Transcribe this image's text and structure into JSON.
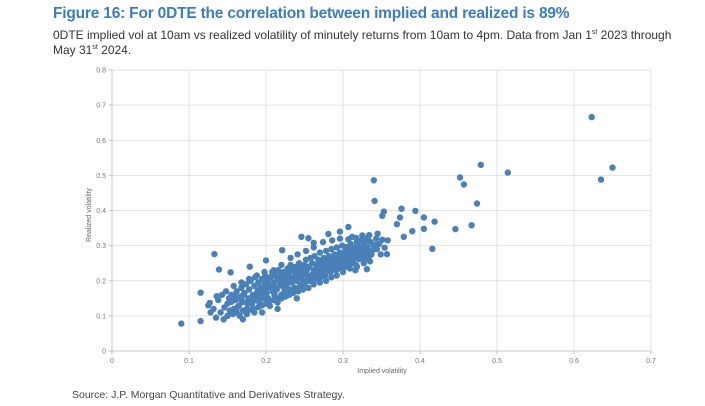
{
  "figure": {
    "title": "Figure 16: For 0DTE the correlation between implied and realized is 89%",
    "subtitle_part1": "0DTE implied vol at 10am vs realized volatility of minutely returns from 10am to 4pm. Data from Jan 1",
    "subtitle_sup1": "st",
    "subtitle_part2": " 2023 through May 31",
    "subtitle_sup2": "st",
    "subtitle_part3": " 2024.",
    "source": "Source: J.P. Morgan Quantitative and Derivatives Strategy."
  },
  "chart_data": {
    "type": "scatter",
    "title": "Figure 16: For 0DTE the correlation between implied and realized is 89%",
    "xlabel": "Implied volatility",
    "ylabel": "Realized volatility",
    "xlim": [
      0,
      0.7
    ],
    "ylim": [
      0,
      0.8
    ],
    "xticks": [
      "0",
      "0.1",
      "0.2",
      "0.3",
      "0.4",
      "0.5",
      "0.6",
      "0.7"
    ],
    "yticks": [
      "0",
      "0.1",
      "0.2",
      "0.3",
      "0.4",
      "0.5",
      "0.6",
      "0.7",
      "0.8"
    ],
    "grid": true,
    "color": "#4a80b8",
    "points": [
      [
        0.623,
        0.666
      ],
      [
        0.65,
        0.522
      ],
      [
        0.635,
        0.488
      ],
      [
        0.514,
        0.508
      ],
      [
        0.479,
        0.53
      ],
      [
        0.452,
        0.494
      ],
      [
        0.457,
        0.474
      ],
      [
        0.474,
        0.42
      ],
      [
        0.34,
        0.486
      ],
      [
        0.341,
        0.427
      ],
      [
        0.353,
        0.397
      ],
      [
        0.351,
        0.385
      ],
      [
        0.376,
        0.405
      ],
      [
        0.394,
        0.399
      ],
      [
        0.374,
        0.38
      ],
      [
        0.405,
        0.38
      ],
      [
        0.37,
        0.361
      ],
      [
        0.419,
        0.368
      ],
      [
        0.39,
        0.341
      ],
      [
        0.405,
        0.348
      ],
      [
        0.379,
        0.325
      ],
      [
        0.416,
        0.291
      ],
      [
        0.446,
        0.347
      ],
      [
        0.467,
        0.358
      ],
      [
        0.307,
        0.353
      ],
      [
        0.325,
        0.329
      ],
      [
        0.317,
        0.322
      ],
      [
        0.345,
        0.334
      ],
      [
        0.343,
        0.32
      ],
      [
        0.351,
        0.317
      ],
      [
        0.358,
        0.315
      ],
      [
        0.333,
        0.315
      ],
      [
        0.307,
        0.318
      ],
      [
        0.326,
        0.297
      ],
      [
        0.342,
        0.302
      ],
      [
        0.304,
        0.296
      ],
      [
        0.354,
        0.294
      ],
      [
        0.331,
        0.284
      ],
      [
        0.357,
        0.276
      ],
      [
        0.321,
        0.262
      ],
      [
        0.331,
        0.264
      ],
      [
        0.331,
        0.233
      ],
      [
        0.316,
        0.23
      ],
      [
        0.305,
        0.258
      ],
      [
        0.09,
        0.078
      ],
      [
        0.115,
        0.085
      ],
      [
        0.115,
        0.166
      ],
      [
        0.127,
        0.137
      ],
      [
        0.136,
        0.156
      ],
      [
        0.133,
        0.276
      ],
      [
        0.139,
        0.232
      ],
      [
        0.154,
        0.224
      ],
      [
        0.179,
        0.24
      ],
      [
        0.2,
        0.258
      ],
      [
        0.221,
        0.287
      ],
      [
        0.246,
        0.325
      ],
      [
        0.255,
        0.321
      ],
      [
        0.262,
        0.308
      ],
      [
        0.281,
        0.333
      ],
      [
        0.296,
        0.34
      ],
      [
        0.141,
        0.11
      ],
      [
        0.146,
        0.124
      ],
      [
        0.15,
        0.135
      ],
      [
        0.152,
        0.15
      ],
      [
        0.155,
        0.16
      ],
      [
        0.158,
        0.12
      ],
      [
        0.16,
        0.145
      ],
      [
        0.162,
        0.17
      ],
      [
        0.165,
        0.13
      ],
      [
        0.167,
        0.155
      ],
      [
        0.168,
        0.18
      ],
      [
        0.17,
        0.14
      ],
      [
        0.172,
        0.165
      ],
      [
        0.174,
        0.19
      ],
      [
        0.175,
        0.12
      ],
      [
        0.177,
        0.15
      ],
      [
        0.178,
        0.175
      ],
      [
        0.18,
        0.2
      ],
      [
        0.182,
        0.135
      ],
      [
        0.183,
        0.16
      ],
      [
        0.185,
        0.185
      ],
      [
        0.186,
        0.21
      ],
      [
        0.188,
        0.145
      ],
      [
        0.189,
        0.17
      ],
      [
        0.19,
        0.195
      ],
      [
        0.192,
        0.155
      ],
      [
        0.193,
        0.18
      ],
      [
        0.195,
        0.205
      ],
      [
        0.196,
        0.165
      ],
      [
        0.198,
        0.19
      ],
      [
        0.199,
        0.215
      ],
      [
        0.2,
        0.175
      ],
      [
        0.202,
        0.2
      ],
      [
        0.203,
        0.15
      ],
      [
        0.205,
        0.185
      ],
      [
        0.206,
        0.21
      ],
      [
        0.208,
        0.225
      ],
      [
        0.209,
        0.17
      ],
      [
        0.21,
        0.195
      ],
      [
        0.212,
        0.215
      ],
      [
        0.213,
        0.18
      ],
      [
        0.215,
        0.205
      ],
      [
        0.216,
        0.23
      ],
      [
        0.218,
        0.19
      ],
      [
        0.219,
        0.215
      ],
      [
        0.22,
        0.16
      ],
      [
        0.222,
        0.2
      ],
      [
        0.223,
        0.225
      ],
      [
        0.225,
        0.185
      ],
      [
        0.226,
        0.21
      ],
      [
        0.228,
        0.235
      ],
      [
        0.229,
        0.195
      ],
      [
        0.23,
        0.22
      ],
      [
        0.232,
        0.245
      ],
      [
        0.233,
        0.205
      ],
      [
        0.235,
        0.23
      ],
      [
        0.236,
        0.175
      ],
      [
        0.238,
        0.215
      ],
      [
        0.239,
        0.24
      ],
      [
        0.24,
        0.2
      ],
      [
        0.242,
        0.225
      ],
      [
        0.243,
        0.25
      ],
      [
        0.245,
        0.21
      ],
      [
        0.246,
        0.235
      ],
      [
        0.248,
        0.19
      ],
      [
        0.249,
        0.22
      ],
      [
        0.25,
        0.245
      ],
      [
        0.252,
        0.26
      ],
      [
        0.253,
        0.23
      ],
      [
        0.255,
        0.205
      ],
      [
        0.256,
        0.24
      ],
      [
        0.258,
        0.265
      ],
      [
        0.259,
        0.215
      ],
      [
        0.26,
        0.25
      ],
      [
        0.262,
        0.23
      ],
      [
        0.263,
        0.27
      ],
      [
        0.265,
        0.245
      ],
      [
        0.266,
        0.22
      ],
      [
        0.268,
        0.26
      ],
      [
        0.269,
        0.235
      ],
      [
        0.27,
        0.28
      ],
      [
        0.272,
        0.25
      ],
      [
        0.273,
        0.225
      ],
      [
        0.275,
        0.265
      ],
      [
        0.276,
        0.24
      ],
      [
        0.278,
        0.285
      ],
      [
        0.279,
        0.255
      ],
      [
        0.28,
        0.23
      ],
      [
        0.282,
        0.27
      ],
      [
        0.283,
        0.245
      ],
      [
        0.285,
        0.29
      ],
      [
        0.286,
        0.26
      ],
      [
        0.288,
        0.235
      ],
      [
        0.289,
        0.275
      ],
      [
        0.29,
        0.25
      ],
      [
        0.292,
        0.295
      ],
      [
        0.293,
        0.265
      ],
      [
        0.295,
        0.24
      ],
      [
        0.296,
        0.28
      ],
      [
        0.298,
        0.255
      ],
      [
        0.299,
        0.3
      ],
      [
        0.3,
        0.27
      ],
      [
        0.302,
        0.245
      ],
      [
        0.303,
        0.285
      ],
      [
        0.305,
        0.275
      ],
      [
        0.306,
        0.25
      ],
      [
        0.308,
        0.29
      ],
      [
        0.309,
        0.265
      ],
      [
        0.31,
        0.305
      ],
      [
        0.312,
        0.28
      ],
      [
        0.313,
        0.255
      ],
      [
        0.315,
        0.295
      ],
      [
        0.316,
        0.27
      ],
      [
        0.318,
        0.31
      ],
      [
        0.319,
        0.285
      ],
      [
        0.32,
        0.3
      ],
      [
        0.322,
        0.275
      ],
      [
        0.323,
        0.315
      ],
      [
        0.325,
        0.29
      ],
      [
        0.326,
        0.265
      ],
      [
        0.328,
        0.305
      ],
      [
        0.329,
        0.28
      ],
      [
        0.33,
        0.32
      ],
      [
        0.332,
        0.295
      ],
      [
        0.334,
        0.27
      ],
      [
        0.336,
        0.31
      ],
      [
        0.338,
        0.285
      ],
      [
        0.34,
        0.3
      ],
      [
        0.155,
        0.14
      ],
      [
        0.16,
        0.155
      ],
      [
        0.163,
        0.125
      ],
      [
        0.168,
        0.145
      ],
      [
        0.171,
        0.16
      ],
      [
        0.176,
        0.135
      ],
      [
        0.181,
        0.15
      ],
      [
        0.184,
        0.12
      ],
      [
        0.187,
        0.16
      ],
      [
        0.191,
        0.14
      ],
      [
        0.194,
        0.175
      ],
      [
        0.197,
        0.15
      ],
      [
        0.201,
        0.165
      ],
      [
        0.204,
        0.14
      ],
      [
        0.207,
        0.18
      ],
      [
        0.211,
        0.16
      ],
      [
        0.214,
        0.175
      ],
      [
        0.217,
        0.15
      ],
      [
        0.221,
        0.185
      ],
      [
        0.224,
        0.17
      ],
      [
        0.227,
        0.19
      ],
      [
        0.231,
        0.175
      ],
      [
        0.234,
        0.195
      ],
      [
        0.237,
        0.18
      ],
      [
        0.241,
        0.2
      ],
      [
        0.244,
        0.185
      ],
      [
        0.247,
        0.205
      ],
      [
        0.251,
        0.195
      ],
      [
        0.254,
        0.215
      ],
      [
        0.257,
        0.2
      ],
      [
        0.261,
        0.22
      ],
      [
        0.264,
        0.205
      ],
      [
        0.267,
        0.225
      ],
      [
        0.271,
        0.21
      ],
      [
        0.274,
        0.23
      ],
      [
        0.277,
        0.215
      ],
      [
        0.281,
        0.24
      ],
      [
        0.284,
        0.225
      ],
      [
        0.287,
        0.245
      ],
      [
        0.291,
        0.23
      ],
      [
        0.294,
        0.25
      ],
      [
        0.297,
        0.235
      ],
      [
        0.301,
        0.255
      ],
      [
        0.304,
        0.24
      ],
      [
        0.307,
        0.265
      ],
      [
        0.311,
        0.25
      ],
      [
        0.314,
        0.26
      ],
      [
        0.317,
        0.245
      ],
      [
        0.15,
        0.1
      ],
      [
        0.153,
        0.115
      ],
      [
        0.157,
        0.105
      ],
      [
        0.162,
        0.11
      ],
      [
        0.166,
        0.1
      ],
      [
        0.17,
        0.115
      ],
      [
        0.175,
        0.105
      ],
      [
        0.18,
        0.118
      ],
      [
        0.185,
        0.11
      ],
      [
        0.19,
        0.125
      ],
      [
        0.195,
        0.13
      ],
      [
        0.2,
        0.135
      ],
      [
        0.205,
        0.128
      ],
      [
        0.21,
        0.145
      ],
      [
        0.215,
        0.138
      ],
      [
        0.22,
        0.15
      ],
      [
        0.225,
        0.155
      ],
      [
        0.23,
        0.16
      ],
      [
        0.235,
        0.165
      ],
      [
        0.242,
        0.17
      ],
      [
        0.248,
        0.175
      ],
      [
        0.255,
        0.18
      ],
      [
        0.262,
        0.19
      ],
      [
        0.27,
        0.195
      ],
      [
        0.278,
        0.2
      ],
      [
        0.285,
        0.21
      ],
      [
        0.292,
        0.215
      ],
      [
        0.3,
        0.225
      ],
      [
        0.309,
        0.235
      ],
      [
        0.318,
        0.24
      ],
      [
        0.327,
        0.25
      ],
      [
        0.335,
        0.255
      ],
      [
        0.337,
        0.275
      ],
      [
        0.344,
        0.29
      ],
      [
        0.347,
        0.305
      ],
      [
        0.349,
        0.275
      ],
      [
        0.334,
        0.33
      ],
      [
        0.312,
        0.325
      ],
      [
        0.296,
        0.32
      ],
      [
        0.286,
        0.315
      ],
      [
        0.274,
        0.31
      ],
      [
        0.262,
        0.295
      ],
      [
        0.252,
        0.285
      ],
      [
        0.241,
        0.275
      ],
      [
        0.232,
        0.265
      ],
      [
        0.22,
        0.245
      ],
      [
        0.21,
        0.23
      ],
      [
        0.198,
        0.225
      ],
      [
        0.188,
        0.215
      ],
      [
        0.178,
        0.205
      ],
      [
        0.168,
        0.195
      ],
      [
        0.158,
        0.185
      ],
      [
        0.148,
        0.17
      ],
      [
        0.143,
        0.16
      ],
      [
        0.138,
        0.145
      ],
      [
        0.132,
        0.12
      ],
      [
        0.128,
        0.11
      ],
      [
        0.135,
        0.095
      ],
      [
        0.125,
        0.13
      ],
      [
        0.145,
        0.09
      ],
      [
        0.17,
        0.09
      ],
      [
        0.195,
        0.11
      ],
      [
        0.215,
        0.12
      ],
      [
        0.24,
        0.15
      ]
    ]
  }
}
